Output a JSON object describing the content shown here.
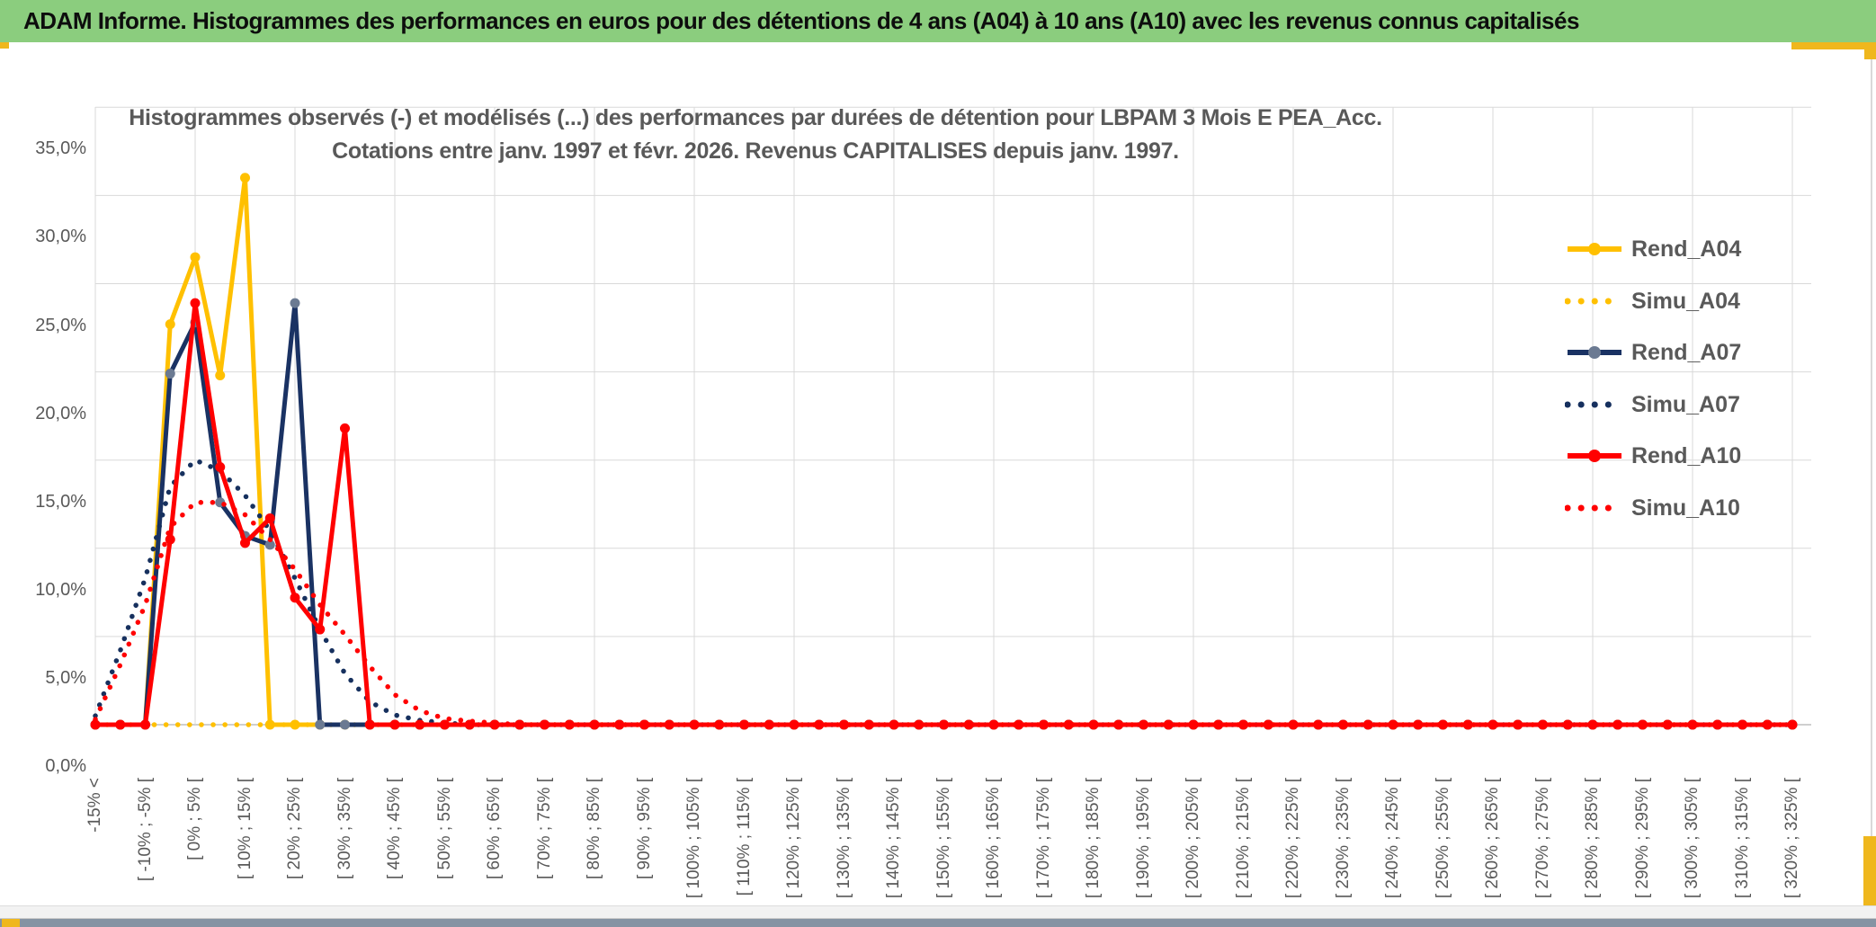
{
  "header": {
    "title": "ADAM Informe. Histogrammes des performances en euros pour des détentions de 4 ans (A04) à 10 ans (A10) avec les revenus connus capitalisés"
  },
  "chart_data": {
    "type": "line",
    "title_line1": "Histogrammes observés (-) et modélisés (...) des performances par durées de détention pour LBPAM 3 Mois E PEA_Acc.",
    "title_line2": "Cotations entre janv. 1997 et févr. 2026. Revenus CAPITALISES depuis janv. 1997.",
    "n_points": 69,
    "x_tick_every": 2,
    "v_gridline_every": 4,
    "values_padded_with_zeros_to_n_points": true,
    "x_tick_labels": [
      "-15% <",
      "[ -10% ; -5% [",
      "[ 0% ; 5% [",
      "[ 10% ; 15% [",
      "[ 20% ; 25% [",
      "[ 30% ; 35% [",
      "[ 40% ; 45% [",
      "[ 50% ; 55% [",
      "[ 60% ; 65% [",
      "[ 70% ; 75% [",
      "[ 80% ; 85% [",
      "[ 90% ; 95% [",
      "[ 100% ; 105% [",
      "[ 110% ; 115% [",
      "[ 120% ; 125% [",
      "[ 130% ; 135% [",
      "[ 140% ; 145% [",
      "[ 150% ; 155% [",
      "[ 160% ; 165% [",
      "[ 170% ; 175% [",
      "[ 180% ; 185% [",
      "[ 190% ; 195% [",
      "[ 200% ; 205% [",
      "[ 210% ; 215% [",
      "[ 220% ; 225% [",
      "[ 230% ; 235% [",
      "[ 240% ; 245% [",
      "[ 250% ; 255% [",
      "[ 260% ; 265% [",
      "[ 270% ; 275% [",
      "[ 280% ; 285% [",
      "[ 290% ; 295% [",
      "[ 300% ; 305% [",
      "[ 310% ; 315% [",
      "[ 320% ; 325% ["
    ],
    "y_tick_labels": [
      "0,0%",
      "5,0%",
      "10,0%",
      "15,0%",
      "20,0%",
      "25,0%",
      "30,0%",
      "35,0%"
    ],
    "y_tick_values": [
      0,
      5,
      10,
      15,
      20,
      25,
      30,
      35
    ],
    "ylim": [
      0,
      35
    ],
    "grid_color": "#d9d9d9",
    "axis_color": "#bfbfbf",
    "text_color": "#595959",
    "series": [
      {
        "name": "Rend_A04",
        "style": "solid",
        "color": "#FFC000",
        "marker_color": "#FFC000",
        "values": [
          0,
          0,
          0,
          22.7,
          26.5,
          19.8,
          31.0,
          0,
          0,
          0,
          0,
          0,
          0,
          0,
          0,
          0,
          0,
          0
        ]
      },
      {
        "name": "Simu_A04",
        "style": "dotted",
        "color": "#FFC000",
        "values": [
          0,
          0,
          0,
          0,
          0,
          0,
          0,
          0,
          0,
          0,
          0,
          0,
          0,
          0,
          0,
          0,
          0,
          0
        ]
      },
      {
        "name": "Rend_A07",
        "style": "solid",
        "color": "#1A3263",
        "marker_color": "#6B7A92",
        "values": [
          0,
          0,
          0,
          19.9,
          22.8,
          12.6,
          10.7,
          10.2,
          23.9,
          0,
          0,
          0,
          0,
          0,
          0,
          0,
          0,
          0
        ]
      },
      {
        "name": "Simu_A07",
        "style": "dotted",
        "color": "#16305E",
        "values": [
          0.5,
          4.2,
          8.3,
          13.5,
          15.0,
          14.4,
          13.0,
          11.0,
          8.3,
          5.4,
          2.9,
          1.3,
          0.55,
          0.25,
          0.1,
          0,
          0,
          0
        ]
      },
      {
        "name": "Rend_A10",
        "style": "solid",
        "color": "#FF0000",
        "marker_color": "#FF0000",
        "values": [
          0,
          0,
          0,
          10.5,
          23.9,
          14.6,
          10.3,
          11.7,
          7.2,
          5.4,
          16.8,
          0,
          0,
          0,
          0,
          0,
          0,
          0
        ]
      },
      {
        "name": "Simu_A10",
        "style": "dotted",
        "color": "#FF0000",
        "values": [
          0.3,
          3.4,
          6.8,
          11.2,
          12.6,
          12.6,
          11.9,
          10.5,
          8.8,
          6.8,
          5.1,
          3.3,
          1.7,
          0.8,
          0.35,
          0.2,
          0.1,
          0
        ]
      }
    ],
    "legend_position": "right"
  },
  "accents": {
    "gold": "#efb71d",
    "header_green": "#8bcd7e",
    "bottom_bar": "#8593a3"
  }
}
